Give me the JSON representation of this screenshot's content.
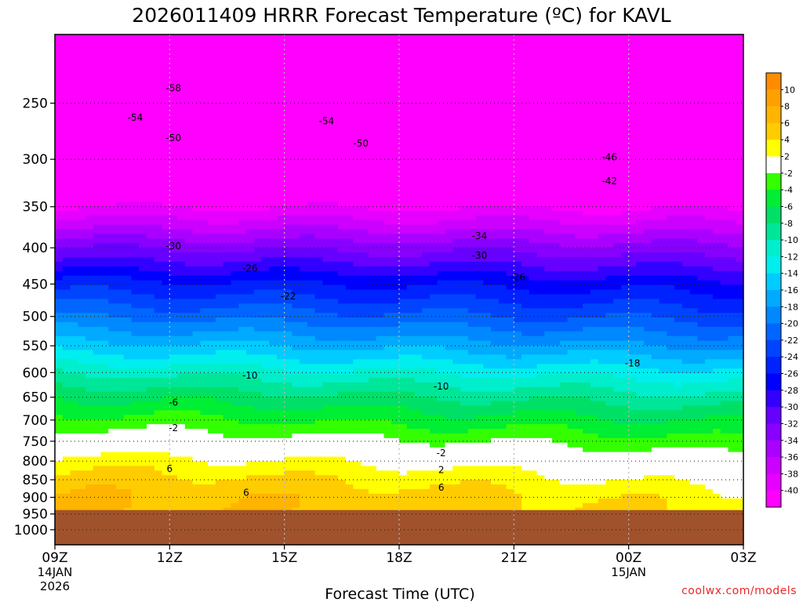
{
  "chart_data": {
    "type": "heatmap",
    "title": "2026011409 HRRR Forecast Temperature (ºC) for KAVL",
    "xlabel": "Forecast Time (UTC)",
    "ylabel": "",
    "credit": "coolwx.com/models",
    "x_ticks": [
      {
        "hour": 0,
        "label": "09Z",
        "date1": "14JAN",
        "date2": "2026"
      },
      {
        "hour": 3,
        "label": "12Z",
        "date1": "",
        "date2": ""
      },
      {
        "hour": 6,
        "label": "15Z",
        "date1": "",
        "date2": ""
      },
      {
        "hour": 9,
        "label": "18Z",
        "date1": "",
        "date2": ""
      },
      {
        "hour": 12,
        "label": "21Z",
        "date1": "",
        "date2": ""
      },
      {
        "hour": 15,
        "label": "00Z",
        "date1": "15JAN",
        "date2": ""
      },
      {
        "hour": 18,
        "label": "03Z",
        "date1": "",
        "date2": ""
      }
    ],
    "x_range_hours": [
      0,
      18
    ],
    "y_ticks": [
      250,
      300,
      350,
      400,
      450,
      500,
      550,
      600,
      650,
      700,
      750,
      800,
      850,
      900,
      950,
      1000
    ],
    "y_range_hpa": [
      200,
      1050
    ],
    "y_scale": "log-pressure",
    "surface_pressure_hpa": 938,
    "colorbar": {
      "labels": [
        "10",
        "8",
        "6",
        "4",
        "2",
        "-2",
        "-4",
        "-6",
        "-8",
        "-10",
        "-12",
        "-14",
        "-16",
        "-18",
        "-20",
        "-22",
        "-24",
        "-26",
        "-28",
        "-30",
        "-32",
        "-34",
        "-36",
        "-38",
        "-40"
      ],
      "colors": [
        "#ff8c00",
        "#ffa000",
        "#ffb400",
        "#ffcc00",
        "#ffff00",
        "#ffffff",
        "#33ff00",
        "#00ee33",
        "#00e066",
        "#00e699",
        "#00eecc",
        "#00eeee",
        "#00ccff",
        "#00aaff",
        "#0088ff",
        "#0066ff",
        "#0044ff",
        "#0022ff",
        "#0000ff",
        "#3300ff",
        "#6600ff",
        "#8800ff",
        "#aa00ff",
        "#cc00ff",
        "#e600ff",
        "#ff00ff"
      ]
    },
    "temperature_profile_09z": [
      {
        "p": 200,
        "t": -64
      },
      {
        "p": 250,
        "t": -56
      },
      {
        "p": 300,
        "t": -48
      },
      {
        "p": 350,
        "t": -40
      },
      {
        "p": 400,
        "t": -32
      },
      {
        "p": 450,
        "t": -25
      },
      {
        "p": 500,
        "t": -20
      },
      {
        "p": 550,
        "t": -15
      },
      {
        "p": 600,
        "t": -10
      },
      {
        "p": 650,
        "t": -6
      },
      {
        "p": 700,
        "t": -3
      },
      {
        "p": 750,
        "t": 0
      },
      {
        "p": 800,
        "t": 3
      },
      {
        "p": 850,
        "t": 5
      },
      {
        "p": 900,
        "t": 6
      },
      {
        "p": 938,
        "t": 6
      }
    ],
    "contour_labels": [
      {
        "text": "-58",
        "hour": 3.1,
        "p": 238
      },
      {
        "text": "-54",
        "hour": 2.1,
        "p": 262
      },
      {
        "text": "-54",
        "hour": 7.1,
        "p": 265
      },
      {
        "text": "-50",
        "hour": 3.1,
        "p": 280
      },
      {
        "text": "-50",
        "hour": 8.0,
        "p": 285
      },
      {
        "text": "-46",
        "hour": 14.5,
        "p": 298
      },
      {
        "text": "-42",
        "hour": 14.5,
        "p": 322
      },
      {
        "text": "-34",
        "hour": 11.1,
        "p": 385
      },
      {
        "text": "-30",
        "hour": 3.1,
        "p": 398
      },
      {
        "text": "-30",
        "hour": 11.1,
        "p": 410
      },
      {
        "text": "-26",
        "hour": 5.1,
        "p": 428
      },
      {
        "text": "-26",
        "hour": 12.1,
        "p": 440
      },
      {
        "text": "-22",
        "hour": 6.1,
        "p": 468
      },
      {
        "text": "-18",
        "hour": 15.1,
        "p": 582
      },
      {
        "text": "-10",
        "hour": 5.1,
        "p": 606
      },
      {
        "text": "-10",
        "hour": 10.1,
        "p": 628
      },
      {
        "text": "-6",
        "hour": 3.1,
        "p": 661
      },
      {
        "text": "-2",
        "hour": 3.1,
        "p": 718
      },
      {
        "text": "-2",
        "hour": 10.1,
        "p": 779
      },
      {
        "text": "2",
        "hour": 10.1,
        "p": 823
      },
      {
        "text": "6",
        "hour": 3.0,
        "p": 820
      },
      {
        "text": "6",
        "hour": 5.0,
        "p": 886
      },
      {
        "text": "6",
        "hour": 10.1,
        "p": 872
      }
    ]
  }
}
